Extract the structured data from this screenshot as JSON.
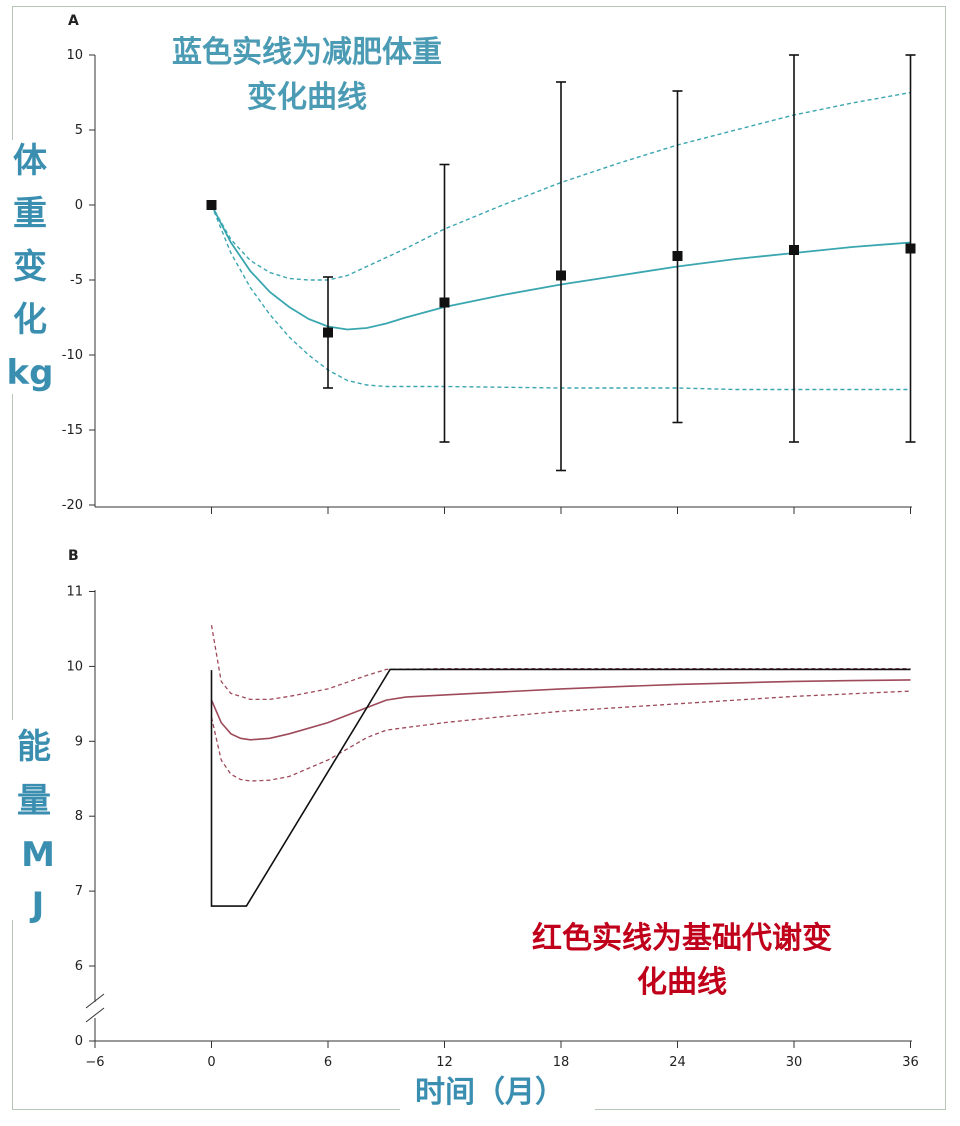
{
  "chart_data": [
    {
      "panel": "A",
      "type": "line",
      "annotation": [
        "蓝色实线为减肥体重",
        "变化曲线"
      ],
      "ylabel_chars": [
        "体",
        "重",
        "变",
        "化",
        "kg"
      ],
      "y_ticks": [
        "10",
        "5",
        "0",
        "-5",
        "-10",
        "-15",
        "-20"
      ],
      "x_ticks": [
        "0",
        "6",
        "12",
        "18",
        "24",
        "30",
        "36"
      ],
      "xlim": [
        -6,
        36
      ],
      "ylim": [
        -20,
        10
      ],
      "series": [
        {
          "style": "solid",
          "color": "#3aa6b0",
          "x": [
            0,
            1,
            2,
            3,
            4,
            5,
            6,
            7,
            8,
            9,
            10,
            12,
            15,
            18,
            21,
            24,
            27,
            30,
            33,
            36
          ],
          "y": [
            0,
            -2.5,
            -4.4,
            -5.8,
            -6.8,
            -7.6,
            -8.1,
            -8.3,
            -8.2,
            -7.9,
            -7.5,
            -6.8,
            -6.0,
            -5.3,
            -4.7,
            -4.1,
            -3.6,
            -3.2,
            -2.8,
            -2.5
          ]
        },
        {
          "style": "dashed",
          "color": "#3aa6b0",
          "x": [
            0,
            1,
            2,
            3,
            4,
            5,
            6,
            7,
            8,
            10,
            12,
            15,
            18,
            21,
            24,
            27,
            30,
            33,
            36
          ],
          "y": [
            0,
            -2.3,
            -3.7,
            -4.5,
            -4.9,
            -5.0,
            -5.0,
            -4.7,
            -4.1,
            -2.9,
            -1.6,
            0,
            1.5,
            2.8,
            4.0,
            5.0,
            6.0,
            6.8,
            7.5
          ]
        },
        {
          "style": "dashed",
          "color": "#3aa6b0",
          "x": [
            0,
            1,
            2,
            3,
            4,
            5,
            6,
            7,
            8,
            9,
            12,
            18,
            24,
            27,
            30,
            36
          ],
          "y": [
            0,
            -3.2,
            -5.5,
            -7.3,
            -8.8,
            -10.0,
            -11.0,
            -11.7,
            -12.0,
            -12.1,
            -12.1,
            -12.2,
            -12.2,
            -12.3,
            -12.3,
            -12.3
          ]
        }
      ],
      "points": [
        {
          "x": 0,
          "y": 0
        },
        {
          "x": 6,
          "y": -8.5,
          "err_low": -12.2,
          "err_high": -4.8
        },
        {
          "x": 12,
          "y": -6.5,
          "err_low": -15.8,
          "err_high": 2.7
        },
        {
          "x": 18,
          "y": -4.7,
          "err_low": -17.7,
          "err_high": 8.2
        },
        {
          "x": 24,
          "y": -3.4,
          "err_low": -14.5,
          "err_high": 7.6
        },
        {
          "x": 30,
          "y": -3.0,
          "err_low": -15.8,
          "err_high": 10.0
        },
        {
          "x": 36,
          "y": -2.9,
          "err_low": -15.8,
          "err_high": 10.0
        }
      ]
    },
    {
      "panel": "B",
      "type": "line",
      "annotation": [
        "红色实线为基础代谢变",
        "化曲线"
      ],
      "ylabel_chars": [
        "能",
        "量",
        "M",
        "J"
      ],
      "y_ticks": [
        "11",
        "10",
        "9",
        "8",
        "7",
        "6",
        "0"
      ],
      "x_ticks": [
        "−6",
        "0",
        "6",
        "12",
        "18",
        "24",
        "30",
        "36"
      ],
      "xlim": [
        -6,
        36
      ],
      "ylim": [
        0,
        11
      ],
      "axis_break": true,
      "xlabel": "时间（月）",
      "series": [
        {
          "style": "solid",
          "color": "#9e4a5a",
          "x": [
            0,
            0.5,
            1,
            1.5,
            2,
            3,
            4,
            6,
            8,
            9,
            10,
            12,
            15,
            18,
            21,
            24,
            27,
            30,
            33,
            36
          ],
          "y": [
            9.55,
            9.25,
            9.1,
            9.04,
            9.02,
            9.04,
            9.1,
            9.25,
            9.45,
            9.55,
            9.59,
            9.62,
            9.66,
            9.7,
            9.73,
            9.76,
            9.78,
            9.8,
            9.81,
            9.82
          ]
        },
        {
          "style": "dashed",
          "color": "#9e4a5a",
          "x": [
            0,
            0.5,
            1,
            2,
            3,
            4,
            6,
            8,
            9,
            12,
            18,
            24,
            30,
            36
          ],
          "y": [
            10.55,
            9.8,
            9.64,
            9.56,
            9.56,
            9.6,
            9.7,
            9.88,
            9.96,
            9.97,
            9.97,
            9.97,
            9.97,
            9.97
          ]
        },
        {
          "style": "dashed",
          "color": "#9e4a5a",
          "x": [
            0,
            0.5,
            1,
            1.5,
            2,
            3,
            4,
            6,
            8,
            9,
            12,
            15,
            18,
            24,
            30,
            36
          ],
          "y": [
            9.32,
            8.75,
            8.56,
            8.49,
            8.47,
            8.48,
            8.53,
            8.75,
            9.05,
            9.15,
            9.25,
            9.33,
            9.4,
            9.5,
            9.6,
            9.67
          ]
        },
        {
          "style": "solid",
          "color": "#111111",
          "x": [
            0,
            0,
            1.8,
            9.2,
            36
          ],
          "y": [
            9.95,
            6.8,
            6.8,
            9.96,
            9.96
          ]
        }
      ]
    }
  ]
}
